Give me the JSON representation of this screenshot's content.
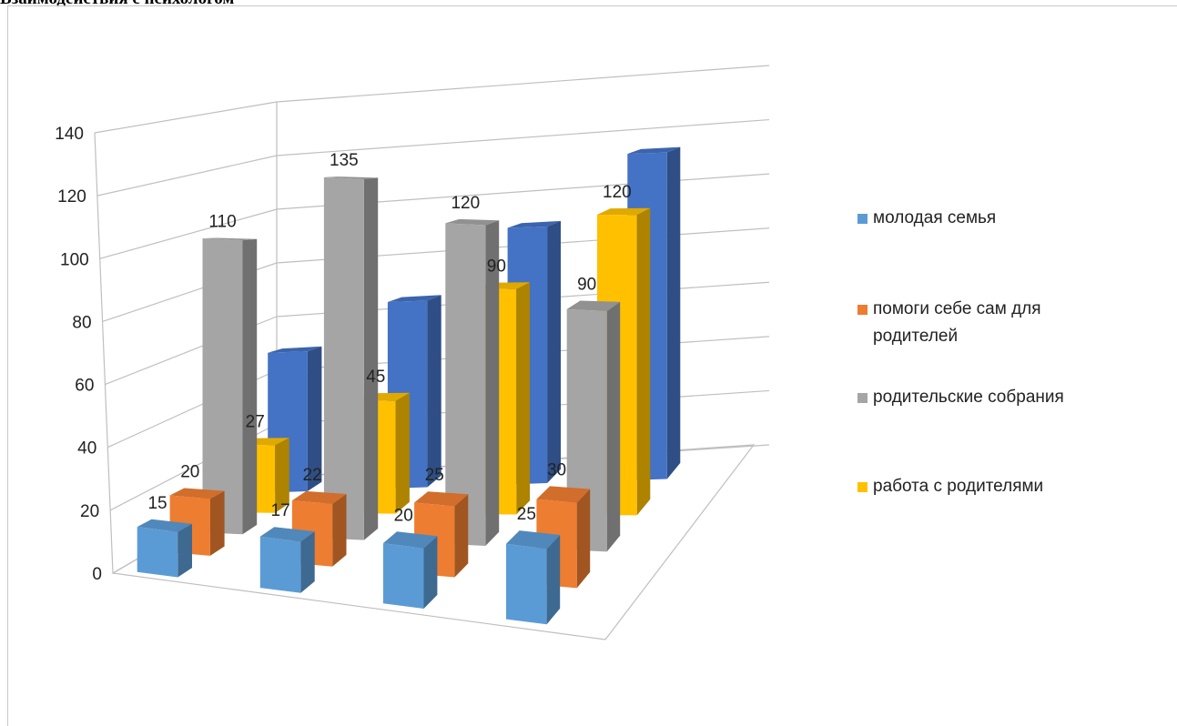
{
  "page": {
    "top_text": "Взаимодействия с психологом"
  },
  "chart_data": {
    "type": "bar",
    "variant": "3d-column",
    "title": "",
    "xlabel": "",
    "ylabel": "",
    "ylim": [
      0,
      140
    ],
    "y_ticks": [
      "0",
      "20",
      "40",
      "60",
      "80",
      "100",
      "120",
      "140"
    ],
    "grid": true,
    "legend_position": "right",
    "categories": [
      "",
      "",
      "",
      ""
    ],
    "series": [
      {
        "name": "молодая семья",
        "values": [
          15,
          17,
          20,
          25
        ],
        "labels": [
          "15",
          "17",
          "20",
          "25"
        ]
      },
      {
        "name": "помоги себе сам для родителей",
        "values": [
          20,
          22,
          25,
          30
        ],
        "labels": [
          "20",
          "22",
          "25",
          "30"
        ]
      },
      {
        "name": "родительские собрания",
        "values": [
          110,
          135,
          120,
          90
        ],
        "labels": [
          "110",
          "135",
          "120",
          "90"
        ]
      },
      {
        "name": "работа с родителями",
        "values": [
          27,
          45,
          90,
          120
        ],
        "labels": [
          "27",
          "45",
          "90",
          "120"
        ]
      },
      {
        "name": "",
        "values": [
          60,
          80,
          110,
          140
        ],
        "labels": [
          "",
          "",
          "",
          ""
        ]
      }
    ]
  },
  "colors": {
    "series": [
      "#5b9bd5",
      "#ed7d31",
      "#a5a5a5",
      "#ffc000",
      "#4472c4"
    ],
    "grid": "#bfbfbf",
    "text": "#222222"
  }
}
